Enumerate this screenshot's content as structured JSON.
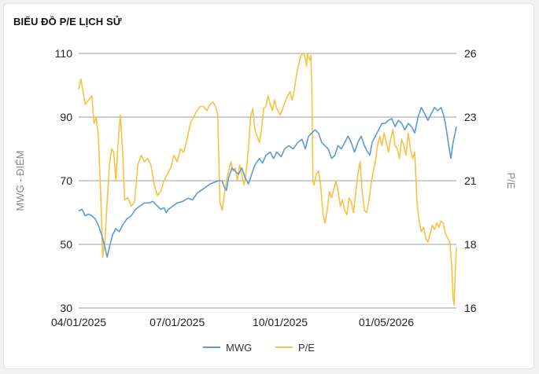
{
  "title": "BIỂU ĐỒ P/E LỊCH SỬ",
  "chart_data": {
    "type": "line",
    "title": "BIỂU ĐỒ P/E LỊCH SỬ",
    "ylabel_left": "MWG - ĐIỂM",
    "ylabel_right": "P/E",
    "ylim_left": [
      30,
      110
    ],
    "ylim_right": [
      16,
      26
    ],
    "yticks_left": [
      "30",
      "50",
      "70",
      "90",
      "110"
    ],
    "yticks_right": [
      "16",
      "18",
      "21",
      "23",
      "26"
    ],
    "xticks": [
      "04/01/2025",
      "07/01/2025",
      "10/01/2025",
      "01/05/2026"
    ],
    "x_ticks_at_index": [
      0,
      90,
      184,
      281
    ],
    "grid": true,
    "legend_position": "bottom",
    "colors": {
      "MWG": "#5b9bd5",
      "P/E": "#f6c242"
    },
    "series": [
      {
        "name": "MWG",
        "axis": "left",
        "points": [
          [
            0,
            60.5
          ],
          [
            3,
            61
          ],
          [
            6,
            59
          ],
          [
            9,
            59.5
          ],
          [
            12,
            59
          ],
          [
            15,
            58
          ],
          [
            18,
            56
          ],
          [
            21,
            53
          ],
          [
            24,
            49
          ],
          [
            26,
            46
          ],
          [
            28,
            49
          ],
          [
            31,
            53
          ],
          [
            34,
            55
          ],
          [
            37,
            54
          ],
          [
            40,
            56
          ],
          [
            44,
            58
          ],
          [
            48,
            59
          ],
          [
            52,
            61
          ],
          [
            56,
            62
          ],
          [
            60,
            63
          ],
          [
            64,
            63
          ],
          [
            68,
            63.5
          ],
          [
            72,
            62
          ],
          [
            75,
            61
          ],
          [
            78,
            61.5
          ],
          [
            80,
            60
          ],
          [
            82,
            61
          ],
          [
            86,
            62
          ],
          [
            90,
            63
          ],
          [
            95,
            63.5
          ],
          [
            100,
            64.5
          ],
          [
            104,
            64
          ],
          [
            108,
            66
          ],
          [
            112,
            67
          ],
          [
            116,
            68
          ],
          [
            120,
            69
          ],
          [
            124,
            69.5
          ],
          [
            128,
            70
          ],
          [
            131,
            70
          ],
          [
            133,
            68
          ],
          [
            135,
            67
          ],
          [
            137,
            71
          ],
          [
            140,
            74
          ],
          [
            143,
            73
          ],
          [
            146,
            72
          ],
          [
            149,
            74
          ],
          [
            152,
            71
          ],
          [
            155,
            69
          ],
          [
            158,
            72
          ],
          [
            161,
            75
          ],
          [
            165,
            77
          ],
          [
            168,
            75.5
          ],
          [
            171,
            78
          ],
          [
            175,
            79
          ],
          [
            178,
            77
          ],
          [
            181,
            79
          ],
          [
            185,
            77.5
          ],
          [
            188,
            80
          ],
          [
            192,
            81
          ],
          [
            196,
            80
          ],
          [
            200,
            82
          ],
          [
            204,
            83
          ],
          [
            207,
            80
          ],
          [
            210,
            84
          ],
          [
            213,
            85
          ],
          [
            216,
            86
          ],
          [
            219,
            85
          ],
          [
            222,
            82
          ],
          [
            225,
            81
          ],
          [
            228,
            80
          ],
          [
            231,
            77
          ],
          [
            234,
            78
          ],
          [
            237,
            81
          ],
          [
            240,
            80
          ],
          [
            243,
            82
          ],
          [
            246,
            84
          ],
          [
            249,
            82
          ],
          [
            252,
            79
          ],
          [
            255,
            82
          ],
          [
            258,
            84
          ],
          [
            261,
            81
          ],
          [
            264,
            79
          ],
          [
            266,
            78
          ],
          [
            268,
            82
          ],
          [
            271,
            84
          ],
          [
            274,
            86
          ],
          [
            277,
            88
          ],
          [
            280,
            88
          ],
          [
            283,
            89
          ],
          [
            286,
            89.5
          ],
          [
            289,
            87
          ],
          [
            292,
            89
          ],
          [
            295,
            88
          ],
          [
            298,
            86
          ],
          [
            301,
            88
          ],
          [
            304,
            87
          ],
          [
            307,
            85
          ],
          [
            310,
            90
          ],
          [
            313,
            93
          ],
          [
            316,
            91
          ],
          [
            319,
            89
          ],
          [
            322,
            91
          ],
          [
            325,
            93
          ],
          [
            328,
            92
          ],
          [
            331,
            93
          ],
          [
            333,
            91
          ],
          [
            335,
            88
          ],
          [
            338,
            81
          ],
          [
            340,
            77
          ],
          [
            342,
            82
          ],
          [
            345,
            87
          ]
        ]
      },
      {
        "name": "P/E",
        "axis": "right",
        "points": [
          [
            0,
            24.3
          ],
          [
            2,
            24.8
          ],
          [
            4,
            24.2
          ],
          [
            6,
            23.6
          ],
          [
            9,
            23.8
          ],
          [
            12,
            24
          ],
          [
            14,
            22.8
          ],
          [
            16,
            23
          ],
          [
            18,
            22.4
          ],
          [
            20,
            20.5
          ],
          [
            22,
            17.6
          ],
          [
            24,
            18.2
          ],
          [
            26,
            20
          ],
          [
            28,
            21.5
          ],
          [
            30,
            22
          ],
          [
            32,
            21.9
          ],
          [
            34,
            21
          ],
          [
            36,
            22.2
          ],
          [
            38,
            23.1
          ],
          [
            40,
            22
          ],
          [
            42,
            20.1
          ],
          [
            45,
            20.2
          ],
          [
            48,
            19.8
          ],
          [
            51,
            20
          ],
          [
            54,
            21.5
          ],
          [
            57,
            21.8
          ],
          [
            60,
            21.6
          ],
          [
            63,
            21.7
          ],
          [
            66,
            21.5
          ],
          [
            69,
            20.8
          ],
          [
            72,
            20.3
          ],
          [
            75,
            20.5
          ],
          [
            78,
            21
          ],
          [
            81,
            21.2
          ],
          [
            84,
            21.4
          ],
          [
            87,
            21.8
          ],
          [
            90,
            21.6
          ],
          [
            93,
            22
          ],
          [
            96,
            21.9
          ],
          [
            99,
            22.3
          ],
          [
            102,
            22.8
          ],
          [
            105,
            23
          ],
          [
            108,
            23.3
          ],
          [
            111,
            23.5
          ],
          [
            114,
            23.5
          ],
          [
            117,
            23.3
          ],
          [
            120,
            23.6
          ],
          [
            123,
            23.7
          ],
          [
            125,
            23.5
          ],
          [
            127,
            23.1
          ],
          [
            129,
            20
          ],
          [
            131,
            19.6
          ],
          [
            133,
            20.3
          ],
          [
            135,
            21
          ],
          [
            137,
            21.3
          ],
          [
            139,
            21.6
          ],
          [
            141,
            21.3
          ],
          [
            143,
            21.4
          ],
          [
            145,
            21
          ],
          [
            147,
            21.5
          ],
          [
            149,
            21.2
          ],
          [
            151,
            20.8
          ],
          [
            153,
            21.3
          ],
          [
            155,
            22
          ],
          [
            157,
            23
          ],
          [
            159,
            23.4
          ],
          [
            161,
            22.6
          ],
          [
            163,
            22.4
          ],
          [
            165,
            22.2
          ],
          [
            167,
            22.6
          ],
          [
            169,
            23.4
          ],
          [
            171,
            23.5
          ],
          [
            173,
            24
          ],
          [
            175,
            23.6
          ],
          [
            177,
            23.3
          ],
          [
            179,
            23.8
          ],
          [
            181,
            23.4
          ],
          [
            184,
            23.1
          ],
          [
            187,
            23.5
          ],
          [
            190,
            23.9
          ],
          [
            193,
            24.2
          ],
          [
            195,
            23.8
          ],
          [
            197,
            24.3
          ],
          [
            199,
            25
          ],
          [
            201,
            25.5
          ],
          [
            203,
            25.9
          ],
          [
            205,
            26
          ],
          [
            207,
            25.8
          ],
          [
            208,
            25.4
          ],
          [
            209,
            26
          ],
          [
            210,
            25.8
          ],
          [
            211,
            25.7
          ],
          [
            212,
            25.9
          ],
          [
            213,
            24.5
          ],
          [
            214,
            21
          ],
          [
            215,
            20.8
          ],
          [
            217,
            21.2
          ],
          [
            219,
            21.3
          ],
          [
            221,
            20.8
          ],
          [
            223,
            19.5
          ],
          [
            225,
            19
          ],
          [
            227,
            19.6
          ],
          [
            229,
            20.5
          ],
          [
            231,
            20.2
          ],
          [
            233,
            20.6
          ],
          [
            235,
            21
          ],
          [
            237,
            20.5
          ],
          [
            239,
            19.8
          ],
          [
            241,
            20.1
          ],
          [
            243,
            19.6
          ],
          [
            245,
            19.4
          ],
          [
            247,
            20.2
          ],
          [
            249,
            20
          ],
          [
            251,
            19.5
          ],
          [
            253,
            20.4
          ],
          [
            255,
            21.2
          ],
          [
            257,
            21.6
          ],
          [
            259,
            20.5
          ],
          [
            261,
            19.6
          ],
          [
            263,
            19.5
          ],
          [
            265,
            20
          ],
          [
            267,
            20.8
          ],
          [
            269,
            21.3
          ],
          [
            271,
            21.6
          ],
          [
            273,
            22.1
          ],
          [
            275,
            22.4
          ],
          [
            277,
            22.1
          ],
          [
            279,
            22.5
          ],
          [
            281,
            22.2
          ],
          [
            283,
            21.9
          ],
          [
            285,
            22.3
          ],
          [
            287,
            22.6
          ],
          [
            289,
            22.1
          ],
          [
            291,
            22
          ],
          [
            293,
            21.7
          ],
          [
            295,
            22.3
          ],
          [
            297,
            22.1
          ],
          [
            299,
            21.8
          ],
          [
            301,
            22.5
          ],
          [
            303,
            22
          ],
          [
            305,
            21.7
          ],
          [
            307,
            21.9
          ],
          [
            309,
            20
          ],
          [
            311,
            19.1
          ],
          [
            313,
            18.6
          ],
          [
            315,
            18.8
          ],
          [
            317,
            18.3
          ],
          [
            319,
            18.1
          ],
          [
            321,
            18.5
          ],
          [
            323,
            18.9
          ],
          [
            325,
            18.7
          ],
          [
            327,
            19
          ],
          [
            329,
            18.8
          ],
          [
            331,
            19.1
          ],
          [
            333,
            19
          ],
          [
            335,
            18.5
          ],
          [
            337,
            18.3
          ],
          [
            339,
            18.1
          ],
          [
            341,
            17.2
          ],
          [
            342,
            16.3
          ],
          [
            343,
            16.1
          ],
          [
            344,
            17.2
          ],
          [
            345,
            17.9
          ]
        ]
      }
    ]
  },
  "legend": [
    {
      "name": "MWG",
      "color": "#5b9bd5"
    },
    {
      "name": "P/E",
      "color": "#f6c242"
    }
  ]
}
